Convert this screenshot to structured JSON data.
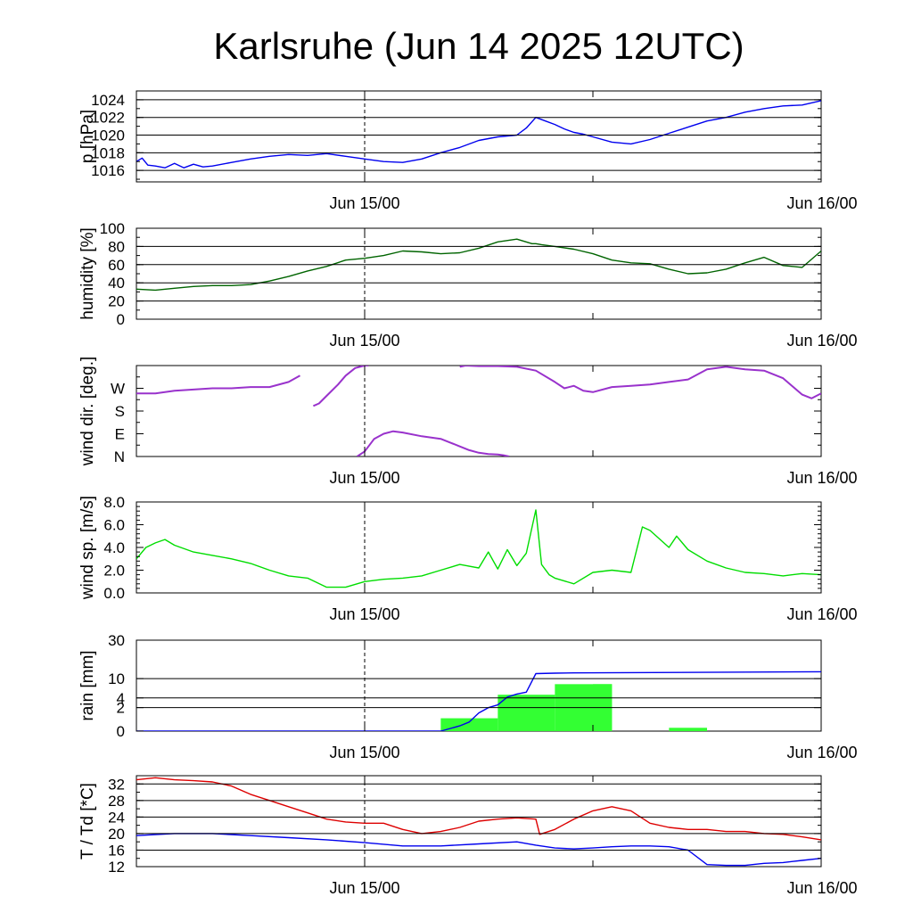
{
  "title": "Karlsruhe (Jun 14 2025 12UTC)",
  "time_labels": [
    "Jun 15/00",
    "Jun 16/00"
  ],
  "chart_data": [
    {
      "id": "pressure",
      "type": "line",
      "ylabel": "p [hPa]",
      "ylim": [
        1014.7,
        1025.0
      ],
      "yticks": [
        1016,
        1018,
        1020,
        1022,
        1024
      ],
      "yticklabels": [
        "1016",
        "1018",
        "1020",
        "1022",
        "1024"
      ],
      "gridlines": [
        1016,
        1018,
        1020,
        1022,
        1024
      ],
      "minor_step": 1,
      "series": [
        {
          "color": "#0000ee",
          "x": [
            0,
            0.3,
            0.6,
            1,
            1.5,
            2,
            2.5,
            3,
            3.5,
            4,
            5,
            6,
            7,
            8,
            9,
            10,
            11,
            12,
            13,
            14,
            15,
            16,
            17,
            18,
            18.5,
            19,
            20,
            20.5,
            21,
            21.5,
            22,
            22.5,
            23,
            23.5,
            24,
            25,
            26,
            27,
            28,
            29,
            30,
            31,
            32,
            33,
            34,
            35,
            36
          ],
          "y": [
            1017.0,
            1017.4,
            1016.6,
            1016.5,
            1016.3,
            1016.8,
            1016.3,
            1016.7,
            1016.4,
            1016.5,
            1016.9,
            1017.3,
            1017.6,
            1017.8,
            1017.7,
            1017.9,
            1017.6,
            1017.3,
            1017.0,
            1016.9,
            1017.3,
            1018.0,
            1018.6,
            1019.4,
            1019.6,
            1019.8,
            1020.0,
            1020.8,
            1022.0,
            1021.6,
            1021.2,
            1020.7,
            1020.3,
            1020.1,
            1019.8,
            1019.2,
            1019.0,
            1019.5,
            1020.2,
            1020.9,
            1021.6,
            1022.0,
            1022.6,
            1023.0,
            1023.3,
            1023.4,
            1023.9
          ]
        }
      ]
    },
    {
      "id": "humidity",
      "type": "line",
      "ylabel": "humidity [%]",
      "ylim": [
        0,
        100
      ],
      "yticks": [
        0,
        20,
        40,
        60,
        80,
        100
      ],
      "yticklabels": [
        "0",
        "20",
        "40",
        "60",
        "80",
        "100"
      ],
      "gridlines": [
        20,
        40,
        60,
        80
      ],
      "minor_step": 10,
      "series": [
        {
          "color": "#006400",
          "x": [
            0,
            1,
            2,
            3,
            4,
            5,
            6,
            7,
            8,
            9,
            10,
            11,
            12,
            13,
            14,
            15,
            16,
            17,
            18,
            19,
            20,
            20.8,
            21,
            21.3,
            22,
            23,
            24,
            25,
            26,
            27,
            28,
            29,
            30,
            31,
            32,
            33,
            34,
            35,
            36
          ],
          "y": [
            33,
            32,
            34,
            36,
            37,
            37,
            38,
            42,
            47,
            53,
            58,
            65,
            67,
            70,
            75,
            74,
            72,
            73,
            78,
            85,
            88,
            83,
            83,
            82,
            80,
            77,
            72,
            65,
            62,
            61,
            55,
            50,
            51,
            55,
            62,
            68,
            59,
            57,
            75
          ]
        }
      ]
    },
    {
      "id": "wind_dir",
      "type": "scatter",
      "ylabel": "wind dir. [deg.]",
      "ylim": [
        0,
        360
      ],
      "yticks": [
        0,
        90,
        180,
        270
      ],
      "yticklabels": [
        "N",
        "E",
        "S",
        "W"
      ],
      "gridlines": [],
      "minor_step": 45,
      "series": [
        {
          "color": "#9932cc",
          "x": [
            0,
            1,
            2,
            3,
            4,
            5,
            6,
            7,
            8,
            8.6
          ],
          "y": [
            250,
            250,
            260,
            265,
            270,
            270,
            275,
            275,
            295,
            320
          ]
        },
        {
          "color": "#9932cc",
          "x": [
            9.3,
            9.6,
            10,
            10.6,
            11,
            11.5,
            12,
            12.2
          ],
          "y": [
            200,
            210,
            240,
            285,
            320,
            350,
            360,
            360
          ]
        },
        {
          "color": "#9932cc",
          "x": [
            17,
            17.3,
            18,
            19,
            20,
            21,
            22,
            22.5,
            23,
            23.5,
            24,
            25,
            26,
            27,
            28,
            29,
            30,
            31,
            32,
            33,
            34,
            35,
            35.5,
            36
          ],
          "y": [
            355,
            360,
            358,
            358,
            355,
            340,
            295,
            270,
            280,
            260,
            255,
            275,
            280,
            285,
            295,
            305,
            345,
            355,
            345,
            340,
            310,
            245,
            230,
            250
          ]
        },
        {
          "color": "#9932cc",
          "x": [
            11.6,
            12,
            12.5,
            13,
            13.5,
            14,
            15,
            16,
            16.5,
            17,
            17.5,
            18,
            18.5,
            19,
            19.3,
            19.6
          ],
          "y": [
            0,
            20,
            70,
            90,
            100,
            95,
            80,
            70,
            55,
            40,
            25,
            15,
            10,
            8,
            5,
            0
          ]
        }
      ]
    },
    {
      "id": "wind_speed",
      "type": "line",
      "ylabel": "wind sp. [m/s]",
      "ylim": [
        0,
        8
      ],
      "yticks": [
        0,
        2,
        4,
        6,
        8
      ],
      "yticklabels": [
        "0.0",
        "2.0",
        "4.0",
        "6.0",
        "8.0"
      ],
      "gridlines": [],
      "minor_step": 0.4,
      "series": [
        {
          "color": "#00dd00",
          "x": [
            0,
            0.5,
            1,
            1.5,
            2,
            3,
            4,
            5,
            6,
            7,
            8,
            9,
            10,
            11,
            12,
            13,
            14,
            15,
            16,
            17,
            18,
            18.5,
            19,
            19.5,
            20,
            20.5,
            21,
            21.3,
            21.7,
            22,
            23,
            24,
            25,
            26,
            26.6,
            27,
            28,
            28.4,
            29,
            30,
            31,
            32,
            33,
            34,
            35,
            36
          ],
          "y": [
            3.0,
            4.0,
            4.4,
            4.7,
            4.2,
            3.6,
            3.3,
            3.0,
            2.6,
            2.0,
            1.5,
            1.3,
            0.5,
            0.5,
            1.0,
            1.2,
            1.3,
            1.5,
            2.0,
            2.5,
            2.2,
            3.6,
            2.1,
            3.8,
            2.4,
            3.5,
            7.3,
            2.5,
            1.6,
            1.3,
            0.8,
            1.8,
            2.0,
            1.8,
            5.8,
            5.5,
            4.0,
            5.0,
            3.8,
            2.8,
            2.2,
            1.8,
            1.7,
            1.5,
            1.7,
            1.6
          ]
        }
      ]
    },
    {
      "id": "rain",
      "type": "bar",
      "ylabel": "rain [mm]",
      "scale": "sqrt",
      "ylim": [
        0,
        30
      ],
      "yticks": [
        0,
        2,
        4,
        10,
        30
      ],
      "yticklabels": [
        "0",
        "2",
        "4",
        "10",
        "30"
      ],
      "gridlines": [
        2,
        4,
        10
      ],
      "bars": {
        "color": "#33ff33",
        "start": [
          16,
          19,
          22,
          24,
          25,
          28,
          30,
          33
        ],
        "end": [
          19,
          22,
          25,
          25,
          28,
          30,
          33,
          36
        ],
        "values": [
          0.6,
          4.8,
          8.0,
          8.0,
          0,
          0.04,
          0,
          0
        ]
      },
      "series": [
        {
          "color": "#0000ee",
          "x": [
            0,
            16,
            17,
            17.5,
            18,
            18.5,
            19,
            19.5,
            20,
            20.5,
            21,
            22,
            23,
            36
          ],
          "y": [
            0,
            0,
            0.1,
            0.3,
            1.2,
            2.0,
            2.5,
            4.2,
            5.0,
            5.5,
            12.0,
            12.2,
            12.3,
            12.8
          ]
        }
      ]
    },
    {
      "id": "temperature",
      "type": "line",
      "ylabel": "T / Td [*C]",
      "ylim": [
        12,
        34
      ],
      "yticks": [
        12,
        16,
        20,
        24,
        28,
        32
      ],
      "yticklabels": [
        "12",
        "16",
        "20",
        "24",
        "28",
        "32"
      ],
      "gridlines": [
        12,
        16,
        20,
        24,
        28,
        32
      ],
      "minor_step": 2,
      "series": [
        {
          "color": "#dd0000",
          "x": [
            0,
            1,
            2,
            3,
            4,
            5,
            6,
            7,
            8,
            9,
            10,
            11,
            12,
            13,
            14,
            15,
            16,
            17,
            18,
            19,
            20,
            21,
            21.2,
            22,
            23,
            24,
            25,
            26,
            27,
            28,
            29,
            30,
            31,
            32,
            33,
            34,
            35,
            36
          ],
          "y": [
            33.0,
            33.5,
            33.0,
            32.8,
            32.5,
            31.5,
            29.5,
            28.0,
            26.5,
            25.0,
            23.5,
            22.8,
            22.5,
            22.5,
            21.0,
            20.0,
            20.5,
            21.5,
            23.0,
            23.5,
            23.8,
            23.5,
            19.8,
            21.0,
            23.5,
            25.5,
            26.5,
            25.5,
            22.5,
            21.5,
            21.0,
            21.0,
            20.5,
            20.5,
            20.0,
            19.8,
            19.2,
            18.5
          ]
        },
        {
          "color": "#0000ee",
          "x": [
            0,
            2,
            4,
            6,
            8,
            10,
            12,
            14,
            16,
            18,
            20,
            21,
            22,
            23,
            24,
            25,
            26,
            27,
            28,
            29,
            30,
            31,
            32,
            33,
            34,
            35,
            36
          ],
          "y": [
            19.5,
            20.0,
            20.0,
            19.5,
            19.0,
            18.5,
            17.8,
            17.0,
            17.0,
            17.5,
            18.0,
            17.2,
            16.5,
            16.3,
            16.5,
            16.8,
            17.0,
            17.0,
            16.8,
            16.0,
            12.5,
            12.3,
            12.3,
            12.8,
            13.0,
            13.5,
            14.0
          ]
        }
      ]
    }
  ]
}
